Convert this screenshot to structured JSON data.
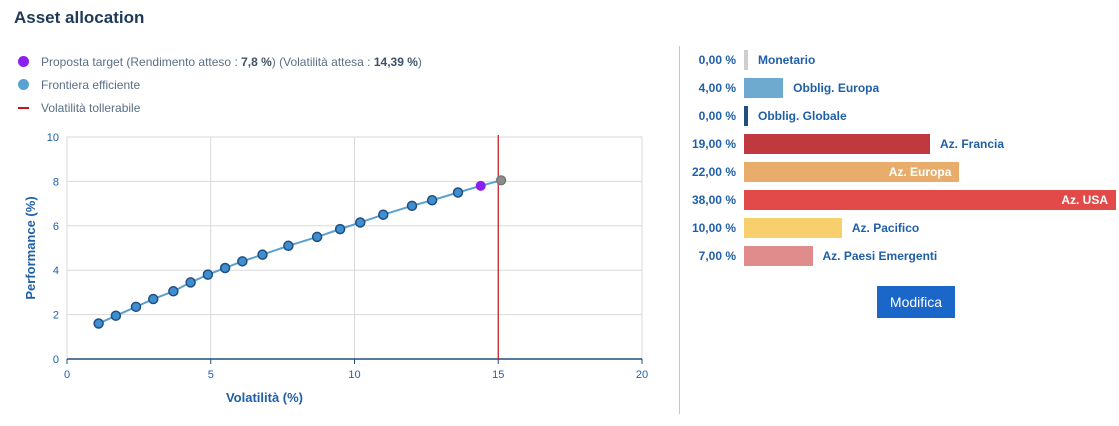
{
  "page": {
    "title": "Asset allocation"
  },
  "legend": {
    "target": {
      "prefix": "Proposta target (Rendimento atteso : ",
      "return": "7,8 %",
      "middle": ") (Volatilità attesa : ",
      "volatility": "14,39 %",
      "suffix": ")",
      "color": "#8a1ff0"
    },
    "frontier": {
      "label": "Frontiera efficiente",
      "color": "#5aa0d2"
    },
    "tolerable": {
      "label": "Volatilità tollerabile",
      "color": "#c2161b"
    }
  },
  "chart_data": {
    "type": "scatter",
    "xlabel": "Volatilità (%)",
    "ylabel": "Performance (%)",
    "xlim": [
      0,
      20
    ],
    "ylim": [
      0,
      10
    ],
    "xticks": [
      0,
      5,
      10,
      15,
      20
    ],
    "yticks": [
      0,
      2,
      4,
      6,
      8,
      10
    ],
    "grid": true,
    "series": [
      {
        "name": "Frontiera efficiente",
        "color": "#5aa0d2",
        "x": [
          1.1,
          1.7,
          2.4,
          3.0,
          3.7,
          4.3,
          4.9,
          5.5,
          6.1,
          6.8,
          7.7,
          8.7,
          9.5,
          10.2,
          11.0,
          12.0,
          12.7,
          13.6
        ],
        "y": [
          1.6,
          1.95,
          2.35,
          2.7,
          3.05,
          3.45,
          3.8,
          4.1,
          4.4,
          4.7,
          5.1,
          5.5,
          5.85,
          6.15,
          6.5,
          6.9,
          7.15,
          7.5
        ]
      },
      {
        "name": "Proposta target",
        "color": "#8a1ff0",
        "x": [
          14.39
        ],
        "y": [
          7.8
        ]
      }
    ],
    "extra_point": {
      "x": 15.1,
      "y": 8.05,
      "color": "#8c8c8c"
    },
    "tolerable_volatility": {
      "x": 15.0,
      "color": "#c2161b"
    }
  },
  "allocation": [
    {
      "pct": "0,00 %",
      "value": 0,
      "label": "Monetario",
      "color": "#cfcfcf"
    },
    {
      "pct": "4,00 %",
      "value": 4,
      "label": "Obblig. Europa",
      "color": "#6ea9cf"
    },
    {
      "pct": "0,00 %",
      "value": 0,
      "label": "Obblig. Globale",
      "color": "#1f4f7f"
    },
    {
      "pct": "19,00 %",
      "value": 19,
      "label": "Az. Francia",
      "color": "#c0393f"
    },
    {
      "pct": "22,00 %",
      "value": 22,
      "label": "Az. Europa",
      "color": "#e9ad6b"
    },
    {
      "pct": "38,00 %",
      "value": 38,
      "label": "Az. USA",
      "color": "#e24a4a"
    },
    {
      "pct": "10,00 %",
      "value": 10,
      "label": "Az. Pacifico",
      "color": "#f7cf6d"
    },
    {
      "pct": "7,00 %",
      "value": 7,
      "label": "Az. Paesi Emergenti",
      "color": "#e08c8c"
    }
  ],
  "button": {
    "label": "Modifica"
  }
}
